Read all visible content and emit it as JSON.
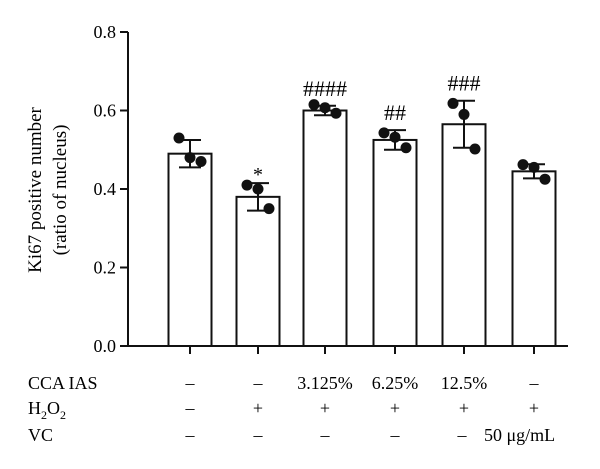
{
  "chart_data": {
    "type": "bar",
    "ylabel_line1": "Ki67 positive number",
    "ylabel_line2": "(ratio of nucleus)",
    "ylim": [
      0,
      0.8
    ],
    "yticks": [
      "0.0",
      "0.2",
      "0.4",
      "0.6",
      "0.8"
    ],
    "grid": false,
    "bars": [
      {
        "value": 0.49,
        "error": 0.035,
        "points": [
          0.53,
          0.48,
          0.47
        ],
        "annotation": ""
      },
      {
        "value": 0.38,
        "error": 0.035,
        "points": [
          0.41,
          0.4,
          0.35
        ],
        "annotation": "*"
      },
      {
        "value": 0.6,
        "error": 0.012,
        "points": [
          0.615,
          0.607,
          0.593
        ],
        "annotation": "####"
      },
      {
        "value": 0.525,
        "error": 0.025,
        "points": [
          0.543,
          0.532,
          0.505
        ],
        "annotation": "##"
      },
      {
        "value": 0.565,
        "error": 0.06,
        "points": [
          0.618,
          0.59,
          0.502
        ],
        "annotation": "###"
      },
      {
        "value": 0.445,
        "error": 0.018,
        "points": [
          0.462,
          0.455,
          0.425
        ],
        "annotation": ""
      }
    ],
    "table": {
      "rows": [
        {
          "label": "CCA IAS",
          "cells": [
            "–",
            "–",
            "3.125%",
            "6.25%",
            "12.5%",
            "–"
          ]
        },
        {
          "label_main": "H",
          "label_sub": "2",
          "label_mid": "O",
          "label_sub2": "2",
          "cells": [
            "–",
            "+",
            "+",
            "+",
            "+",
            "+"
          ]
        },
        {
          "label": "VC",
          "cells": [
            "–",
            "–",
            "–",
            "–",
            "–",
            "50 μg/mL"
          ]
        }
      ]
    }
  }
}
